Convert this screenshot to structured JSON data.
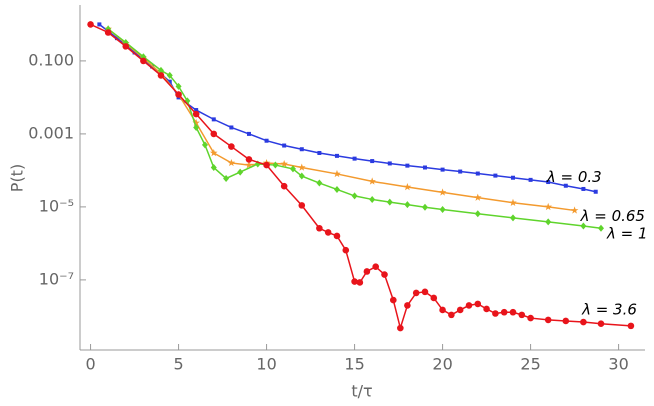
{
  "chart_data": {
    "type": "line",
    "log_y": true,
    "xlabel": "t/τ",
    "ylabel": "P(t)",
    "xlim": [
      -0.6,
      31.5
    ],
    "xticks": [
      0,
      5,
      10,
      15,
      20,
      25,
      30
    ],
    "ylim": [
      1.2e-09,
      3.4
    ],
    "yticks": [
      {
        "value": 0.1,
        "label": "0.100"
      },
      {
        "value": 0.001,
        "label": "0.001"
      },
      {
        "value": 1e-05,
        "label": "10⁻⁵"
      },
      {
        "value": 1e-07,
        "label": "10⁻⁷"
      }
    ],
    "series": [
      {
        "name": "λ = 0.3",
        "color": "#2b3be0",
        "marker": "square",
        "x": [
          0.5,
          1,
          1.5,
          2,
          2.5,
          3,
          3.5,
          4,
          4.5,
          5,
          6,
          7,
          8,
          9,
          10,
          11,
          12,
          13,
          14,
          15,
          16,
          17,
          18,
          19,
          20,
          21,
          22,
          23,
          24,
          25,
          26,
          27,
          28,
          28.7
        ],
        "values": [
          1.0,
          0.65,
          0.42,
          0.27,
          0.17,
          0.11,
          0.07,
          0.044,
          0.027,
          0.01,
          0.0045,
          0.0025,
          0.0015,
          0.001,
          0.00065,
          0.00048,
          0.00038,
          0.0003,
          0.00025,
          0.00021,
          0.00018,
          0.000155,
          0.000135,
          0.00012,
          0.000105,
          9.3e-05,
          8.2e-05,
          7.2e-05,
          6.3e-05,
          5.5e-05,
          4.8e-05,
          3.8e-05,
          3.1e-05,
          2.6e-05
        ]
      },
      {
        "name": "λ = 0.65",
        "color": "#f39a2e",
        "marker": "star",
        "x": [
          1,
          2,
          3,
          4,
          5,
          6,
          7,
          8,
          9,
          10,
          11,
          12,
          14,
          16,
          18,
          20,
          22,
          24,
          26,
          27.5
        ],
        "values": [
          0.75,
          0.3,
          0.12,
          0.045,
          0.012,
          0.002,
          0.0003,
          0.00016,
          0.00014,
          0.00016,
          0.00015,
          0.00012,
          8e-05,
          5e-05,
          3.5e-05,
          2.5e-05,
          1.8e-05,
          1.3e-05,
          1e-05,
          8e-06
        ]
      },
      {
        "name": "λ = 1",
        "color": "#5fd42c",
        "marker": "diamond",
        "x": [
          1,
          2,
          3,
          4,
          4.5,
          5,
          5.5,
          6,
          6.5,
          7,
          7.7,
          8.5,
          9.5,
          10.5,
          11.5,
          12,
          13,
          14,
          15,
          16,
          17,
          18,
          19,
          20,
          22,
          24,
          26,
          28,
          29
        ],
        "values": [
          0.75,
          0.32,
          0.13,
          0.055,
          0.04,
          0.02,
          0.008,
          0.0015,
          0.0005,
          0.00012,
          6e-05,
          9e-05,
          0.00015,
          0.00014,
          0.00011,
          7e-05,
          4.5e-05,
          3e-05,
          2e-05,
          1.6e-05,
          1.35e-05,
          1.15e-05,
          9.8e-06,
          8.5e-06,
          6.5e-06,
          5e-06,
          3.9e-06,
          3e-06,
          2.6e-06
        ]
      },
      {
        "name": "λ = 3.6",
        "color": "#e8141b",
        "marker": "circle",
        "x": [
          0,
          1,
          2,
          3,
          4,
          5,
          6,
          7,
          8,
          9,
          10,
          11,
          12,
          13,
          13.5,
          14,
          14.5,
          15,
          15.3,
          15.7,
          16.2,
          16.7,
          17.2,
          17.6,
          18,
          18.5,
          19,
          19.5,
          20,
          20.5,
          21,
          21.5,
          22,
          22.5,
          23,
          23.5,
          24,
          24.5,
          25,
          26,
          27,
          28,
          29,
          30.7
        ],
        "values": [
          1.0,
          0.6,
          0.25,
          0.1,
          0.04,
          0.012,
          0.0035,
          0.001,
          0.00045,
          0.0002,
          0.00014,
          3.7e-05,
          1.1e-05,
          2.6e-06,
          2e-06,
          1.6e-06,
          6.5e-07,
          9e-08,
          8.5e-08,
          1.7e-07,
          2.3e-07,
          1.4e-07,
          2.8e-08,
          4.8e-09,
          2e-08,
          4.4e-08,
          4.7e-08,
          3.2e-08,
          1.5e-08,
          1.1e-08,
          1.5e-08,
          2e-08,
          2.2e-08,
          1.6e-08,
          1.2e-08,
          1.3e-08,
          1.3e-08,
          1.1e-08,
          9e-09,
          8e-09,
          7.5e-09,
          7e-09,
          6.3e-09,
          5.5e-09
        ]
      }
    ]
  }
}
